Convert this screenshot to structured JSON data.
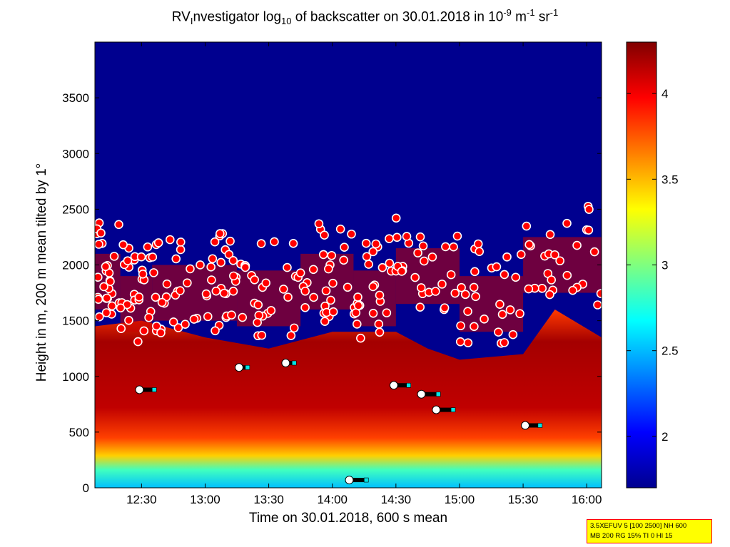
{
  "title": {
    "main": "RV",
    "main_sub": "I",
    "rest_a": "nvestigator log",
    "sub": "10",
    "rest_b": " of backscatter on 30.01.2018 in 10",
    "sup1": "-9",
    "rest_c": " m",
    "sup2": "-1",
    "rest_d": " sr",
    "sup3": "-1"
  },
  "info_box": {
    "line1": "3.5XEFUV 5 [100 2500] NH 600",
    "line2": "MB 200 RG 15% TI 0 HI 15"
  },
  "chart_data": {
    "type": "heatmap",
    "title": "RVInvestigator log10 of backscatter on 30.01.2018 in 10^-9 m^-1 sr^-1",
    "xlabel": "Time on 30.01.2018, 600 s mean",
    "ylabel": "Height in m, 200 m mean tilted by 1°",
    "xlim": [
      "12:08",
      "16:07"
    ],
    "ylim": [
      0,
      4000
    ],
    "xticks": [
      {
        "time_min": 750,
        "label": "12:30"
      },
      {
        "time_min": 780,
        "label": "13:00"
      },
      {
        "time_min": 810,
        "label": "13:30"
      },
      {
        "time_min": 840,
        "label": "14:00"
      },
      {
        "time_min": 870,
        "label": "14:30"
      },
      {
        "time_min": 900,
        "label": "15:00"
      },
      {
        "time_min": 930,
        "label": "15:30"
      },
      {
        "time_min": 960,
        "label": "16:00"
      }
    ],
    "yticks": [
      0,
      500,
      1000,
      1500,
      2000,
      2500,
      3000,
      3500
    ],
    "colorbar": {
      "range": [
        1.7,
        4.3
      ],
      "ticks": [
        2,
        2.5,
        3,
        3.5,
        4
      ],
      "colormap": "jet"
    },
    "colors": {
      "background_low": "#00008f",
      "saturated_high": "#800000",
      "cloud_marker_fill": "#ff0000",
      "cloud_marker_edge": "#0000ff",
      "aux_marker_cyan": "#00e5e5",
      "aux_marker_white": "#ffffff",
      "cloud_base_bar": "#000000"
    },
    "cloud_layers": [
      {
        "start": "12:08",
        "end": "12:20",
        "height": 1850
      },
      {
        "start": "12:20",
        "end": "12:35",
        "height": 1650
      },
      {
        "start": "12:35",
        "end": "13:00",
        "height": 1750
      },
      {
        "start": "13:00",
        "end": "13:15",
        "height": 1750
      },
      {
        "start": "13:15",
        "end": "13:45",
        "height": 1700
      },
      {
        "start": "13:45",
        "end": "14:10",
        "height": 1850
      },
      {
        "start": "14:10",
        "end": "14:30",
        "height": 1700
      },
      {
        "start": "14:30",
        "end": "15:00",
        "height": 1900
      },
      {
        "start": "15:00",
        "end": "15:30",
        "height": 1650
      },
      {
        "start": "15:30",
        "end": "16:07",
        "height": 2000
      }
    ],
    "boundary_layer_top": [
      {
        "time": "12:08",
        "height": 1450
      },
      {
        "time": "12:30",
        "height": 1500
      },
      {
        "time": "13:00",
        "height": 1350
      },
      {
        "time": "13:30",
        "height": 1250
      },
      {
        "time": "14:00",
        "height": 1400
      },
      {
        "time": "14:30",
        "height": 1400
      },
      {
        "time": "14:45",
        "height": 1250
      },
      {
        "time": "15:00",
        "height": 1150
      },
      {
        "time": "15:30",
        "height": 1200
      },
      {
        "time": "15:45",
        "height": 1600
      },
      {
        "time": "16:07",
        "height": 1350
      }
    ],
    "cloud_base_bars": [
      {
        "start": "12:29",
        "end": "12:36",
        "height": 880
      },
      {
        "start": "13:16",
        "end": "13:20",
        "height": 1080
      },
      {
        "start": "13:38",
        "end": "13:42",
        "height": 1120
      },
      {
        "start": "14:08",
        "end": "14:16",
        "height": 70
      },
      {
        "start": "14:29",
        "end": "14:36",
        "height": 920
      },
      {
        "start": "14:42",
        "end": "14:50",
        "height": 840
      },
      {
        "start": "14:49",
        "end": "14:57",
        "height": 700
      },
      {
        "start": "15:31",
        "end": "15:38",
        "height": 560
      }
    ]
  }
}
